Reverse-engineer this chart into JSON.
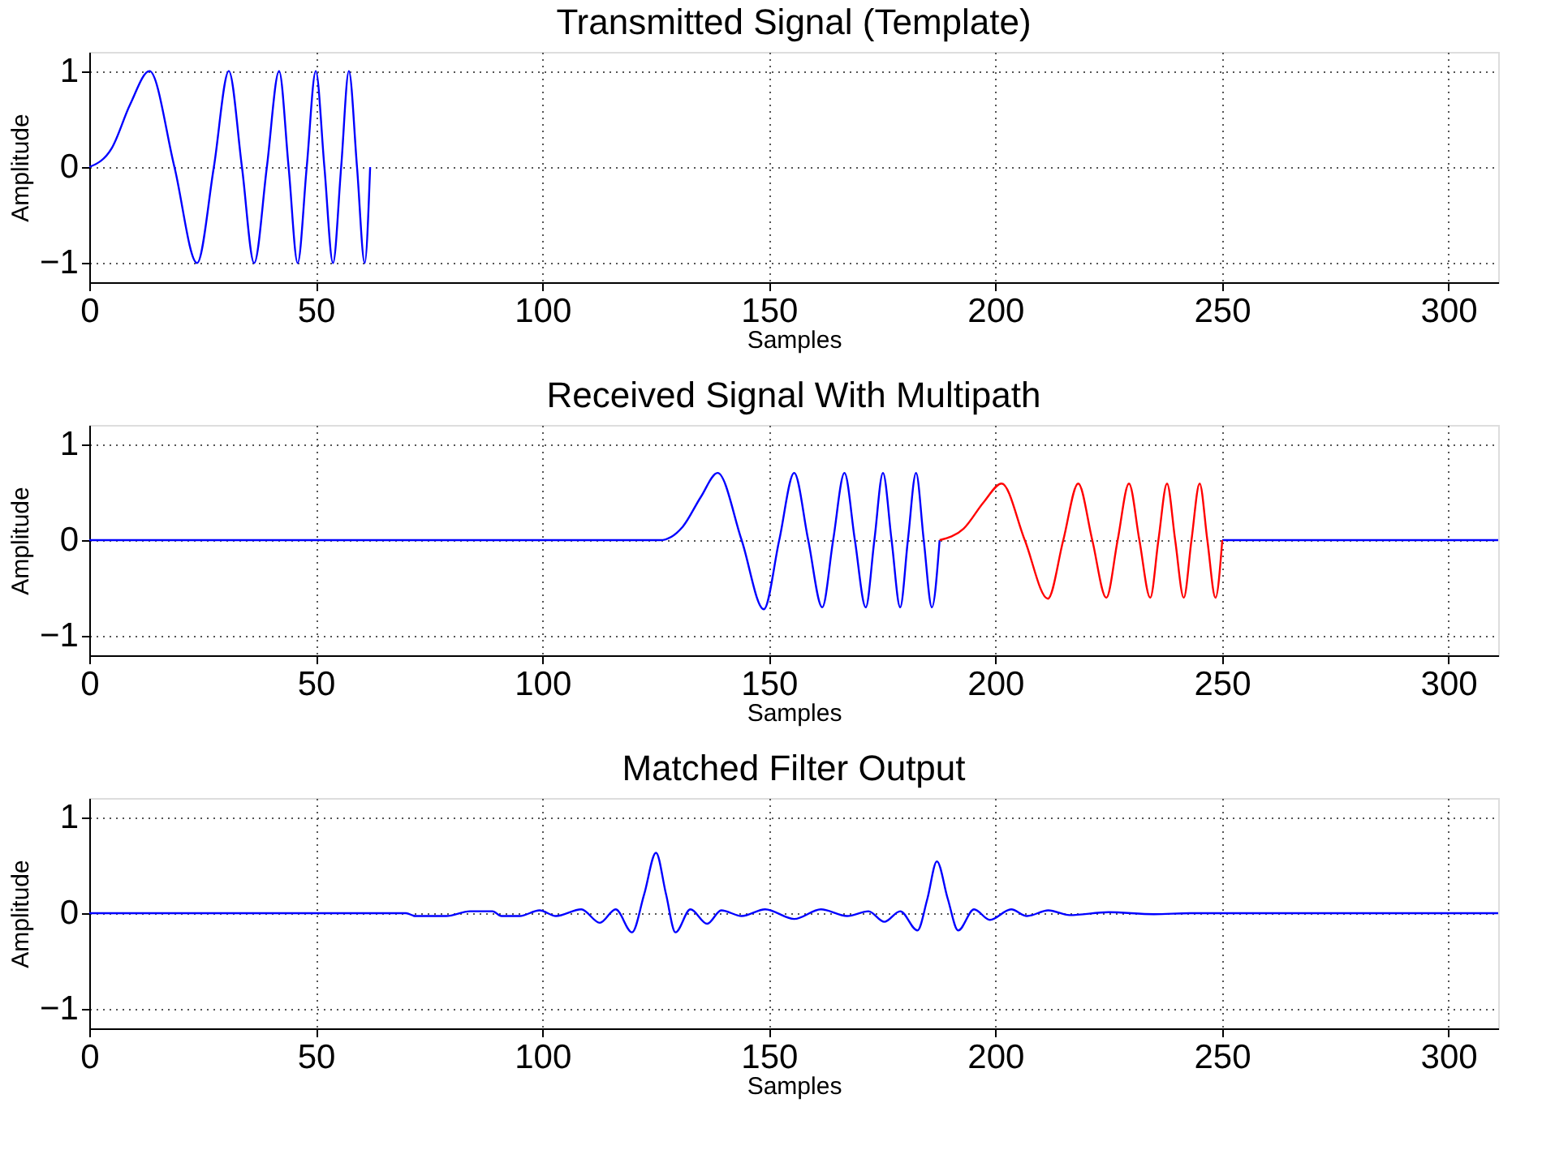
{
  "chart_data": [
    {
      "type": "line",
      "title": "Transmitted Signal (Template)",
      "xlabel": "Samples",
      "ylabel": "Amplitude",
      "xlim": [
        0,
        311
      ],
      "xticks": [
        0,
        50,
        100,
        150,
        200,
        250,
        300
      ],
      "ylim": [
        -1.2,
        1.2
      ],
      "yticks": [
        -1,
        0,
        1
      ],
      "grid": true,
      "line_style": "solid",
      "marker": "none",
      "series": [
        {
          "color": "#0000ff",
          "x": [
            0,
            5,
            9,
            13.3,
            18.8,
            23.8,
            27.5,
            30.8,
            33.7,
            36.4,
            39.2,
            41.9,
            44,
            46,
            48,
            50,
            51.9,
            53.8,
            55.6,
            57.3,
            59.1,
            60.8,
            62
          ],
          "values": [
            0,
            0.2,
            0.65,
            1,
            0,
            -1,
            0,
            1,
            0,
            -1,
            0,
            1,
            0,
            -1,
            0,
            1,
            0,
            -1,
            0,
            1,
            0,
            -1,
            0
          ]
        }
      ]
    },
    {
      "type": "line",
      "title": "Received Signal With Multipath",
      "xlabel": "Samples",
      "ylabel": "Amplitude",
      "xlim": [
        0,
        311
      ],
      "xticks": [
        0,
        50,
        100,
        150,
        200,
        250,
        300
      ],
      "ylim": [
        -1.2,
        1.2
      ],
      "yticks": [
        -1,
        0,
        1
      ],
      "grid": true,
      "line_style": "solid",
      "marker": "none",
      "series": [
        {
          "color": "#0000ff",
          "x": [
            0,
            126,
            131,
            135,
            138.7,
            144,
            148.9,
            152.3,
            155.6,
            158.7,
            161.8,
            164.2,
            166.7,
            169,
            171.4,
            173.3,
            175.2,
            177.1,
            179,
            180.7,
            182.5,
            184.2,
            186,
            187.7,
            200,
            250.1,
            311
          ],
          "values": [
            0,
            0,
            0.14,
            0.45,
            0.7,
            0,
            -0.72,
            0,
            0.7,
            0,
            -0.7,
            0,
            0.7,
            0,
            -0.7,
            0,
            0.7,
            0,
            -0.7,
            0,
            0.7,
            0,
            -0.7,
            0,
            null,
            0,
            0
          ]
        },
        {
          "color": "#ff0000",
          "x": [
            187.7,
            193,
            197.5,
            201.4,
            206.5,
            211.6,
            215,
            218.3,
            221.4,
            224.5,
            227,
            229.5,
            231.8,
            234.2,
            236,
            237.9,
            239.7,
            241.6,
            243.3,
            245.1,
            246.8,
            248.6,
            250.1
          ],
          "values": [
            0,
            0.12,
            0.4,
            0.59,
            0,
            -0.61,
            0,
            0.59,
            0,
            -0.6,
            0,
            0.59,
            0,
            -0.6,
            0,
            0.59,
            0,
            -0.6,
            0,
            0.59,
            0,
            -0.6,
            0
          ]
        }
      ]
    },
    {
      "type": "line",
      "title": "Matched Filter Output",
      "xlabel": "Samples",
      "ylabel": "Amplitude",
      "xlim": [
        0,
        311
      ],
      "xticks": [
        0,
        50,
        100,
        150,
        200,
        250,
        300
      ],
      "ylim": [
        -1.2,
        1.2
      ],
      "yticks": [
        -1,
        0,
        1
      ],
      "grid": true,
      "line_style": "solid",
      "marker": "none",
      "series": [
        {
          "color": "#0000ff",
          "x": [
            0,
            69.9,
            72,
            78.8,
            84,
            89,
            91,
            95,
            99.4,
            103,
            108.6,
            112.7,
            116.2,
            119.8,
            122.5,
            125.1,
            127.3,
            129.4,
            132.7,
            136.4,
            139.5,
            144,
            149.2,
            155.6,
            161.5,
            167.3,
            172,
            175.5,
            179,
            182.8,
            185,
            187.1,
            189.5,
            191.8,
            195.3,
            198.8,
            203.5,
            207,
            211.7,
            216.4,
            225,
            235,
            243,
            311
          ],
          "values": [
            0,
            0,
            -0.03,
            -0.03,
            0.02,
            0.02,
            -0.03,
            -0.03,
            0.03,
            -0.03,
            0.04,
            -0.1,
            0.04,
            -0.2,
            0.2,
            0.63,
            0.2,
            -0.2,
            0.04,
            -0.11,
            0.03,
            -0.03,
            0.04,
            -0.06,
            0.04,
            -0.03,
            0.02,
            -0.09,
            0.02,
            -0.18,
            0.15,
            0.54,
            0.15,
            -0.18,
            0.04,
            -0.07,
            0.04,
            -0.03,
            0.03,
            -0.02,
            0.01,
            -0.01,
            0,
            0
          ]
        }
      ]
    }
  ]
}
